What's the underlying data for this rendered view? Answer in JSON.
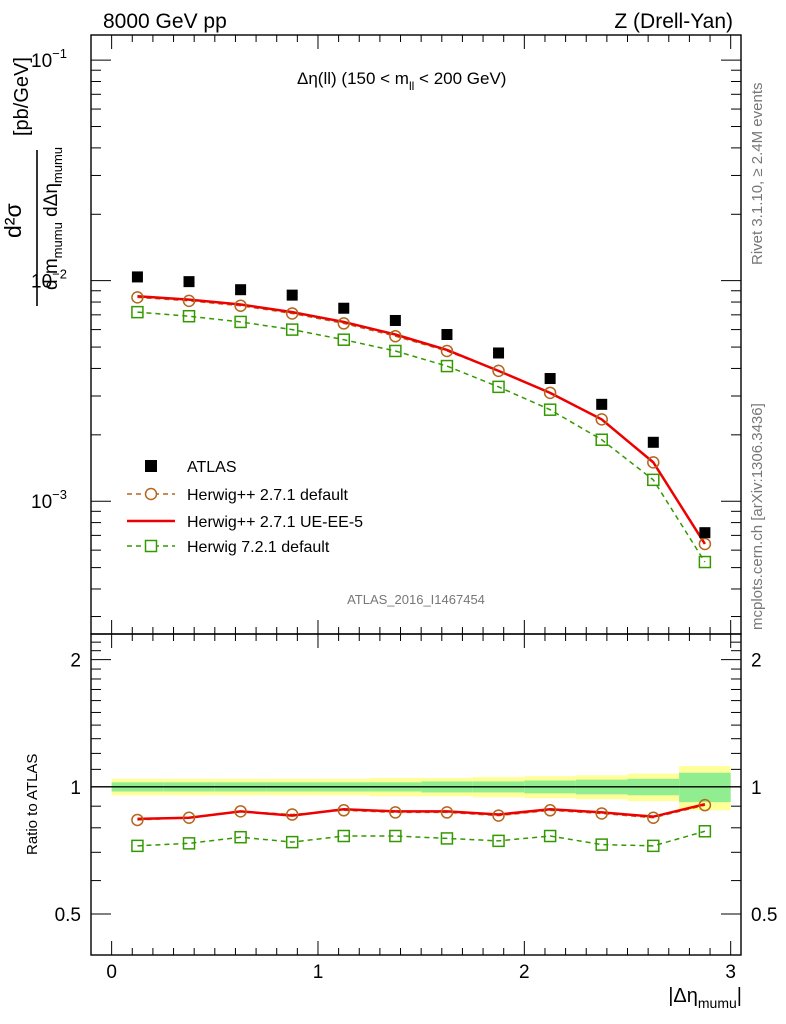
{
  "header": {
    "left": "8000 GeV pp",
    "right": "Z (Drell-Yan)"
  },
  "plot": {
    "title_prefix": "Δη(ll) (150 < m",
    "title_sub": "ll",
    "title_suffix": " < 200 GeV)",
    "analysis": "ATLAS_2016_I1467454",
    "side_top": "Rivet 3.1.10, ≥ 2.4M events",
    "side_bottom": "mcplots.cern.ch [arXiv:1306.3436]",
    "ylabel_unit": "[pb/GeV]",
    "ratio_ylabel": "Ratio to ATLAS",
    "xlabel_main": "|Δη",
    "xlabel_sub": "mumu",
    "xlabel_end": "|",
    "ytick_main": [
      {
        "base": "10",
        "exp": "−1"
      },
      {
        "base": "10",
        "exp": "−2"
      },
      {
        "base": "10",
        "exp": "−3"
      }
    ],
    "ytick_ratio": [
      "0.5",
      "1",
      "2"
    ],
    "xticks": [
      "0",
      "1",
      "2",
      "3"
    ]
  },
  "legend": [
    {
      "name": "ATLAS",
      "style": "data"
    },
    {
      "name": "Herwig++ 2.7.1 default",
      "style": "circle-dashed"
    },
    {
      "name": "Herwig++ 2.7.1 UE-EE-5",
      "style": "solid-red"
    },
    {
      "name": "Herwig 7.2.1 default",
      "style": "square-dashed"
    }
  ],
  "colors": {
    "data": "#000000",
    "herwig_default": "#b5651d",
    "herwig_ueee5": "#ee0000",
    "herwig7": "#339900",
    "band_inner": "#90ee90",
    "band_outer": "#ffff99"
  },
  "chart_data": {
    "type": "scatter",
    "x": [
      0.125,
      0.375,
      0.625,
      0.875,
      1.125,
      1.375,
      1.625,
      1.875,
      2.125,
      2.375,
      2.625,
      2.875
    ],
    "x_edges": [
      0,
      0.25,
      0.5,
      0.75,
      1.0,
      1.25,
      1.5,
      1.75,
      2.0,
      2.25,
      2.5,
      2.75,
      3.0
    ],
    "xlim": [
      -0.1,
      3.05
    ],
    "ylim": [
      0.00025,
      0.13
    ],
    "yscale": "log",
    "ratio_ylim": [
      0.4,
      2.3
    ],
    "ratio_yscale": "log",
    "series": [
      {
        "name": "ATLAS",
        "key": "data",
        "values": [
          0.0104,
          0.0099,
          0.0091,
          0.0086,
          0.0075,
          0.0066,
          0.0057,
          0.0047,
          0.0036,
          0.00275,
          0.00185,
          0.00072
        ]
      },
      {
        "name": "Herwig++ 2.7.1 default",
        "key": "herwig_default",
        "values": [
          0.0084,
          0.0081,
          0.0077,
          0.0071,
          0.0064,
          0.0056,
          0.0048,
          0.0039,
          0.0031,
          0.00235,
          0.0015,
          0.00064
        ],
        "ratio": [
          0.835,
          0.845,
          0.875,
          0.86,
          0.88,
          0.87,
          0.87,
          0.855,
          0.88,
          0.865,
          0.845,
          0.905
        ]
      },
      {
        "name": "Herwig++ 2.7.1 UE-EE-5",
        "key": "herwig_ueee5",
        "values": [
          0.0085,
          0.0082,
          0.0078,
          0.0072,
          0.0065,
          0.0057,
          0.00485,
          0.0039,
          0.0031,
          0.00235,
          0.0015,
          0.00064
        ],
        "ratio": [
          0.84,
          0.845,
          0.875,
          0.855,
          0.885,
          0.875,
          0.875,
          0.86,
          0.885,
          0.87,
          0.85,
          0.91
        ]
      },
      {
        "name": "Herwig 7.2.1 default",
        "key": "herwig7",
        "values": [
          0.0072,
          0.0069,
          0.0065,
          0.006,
          0.0054,
          0.0048,
          0.0041,
          0.0033,
          0.0026,
          0.0019,
          0.00125,
          0.00053
        ],
        "ratio": [
          0.725,
          0.735,
          0.76,
          0.74,
          0.765,
          0.765,
          0.755,
          0.745,
          0.765,
          0.73,
          0.725,
          0.785
        ]
      }
    ],
    "band_inner": [
      0.025,
      0.025,
      0.025,
      0.025,
      0.025,
      0.025,
      0.03,
      0.03,
      0.035,
      0.04,
      0.045,
      0.08
    ],
    "band_outer": [
      0.045,
      0.045,
      0.045,
      0.045,
      0.045,
      0.05,
      0.05,
      0.055,
      0.06,
      0.065,
      0.075,
      0.12
    ]
  }
}
